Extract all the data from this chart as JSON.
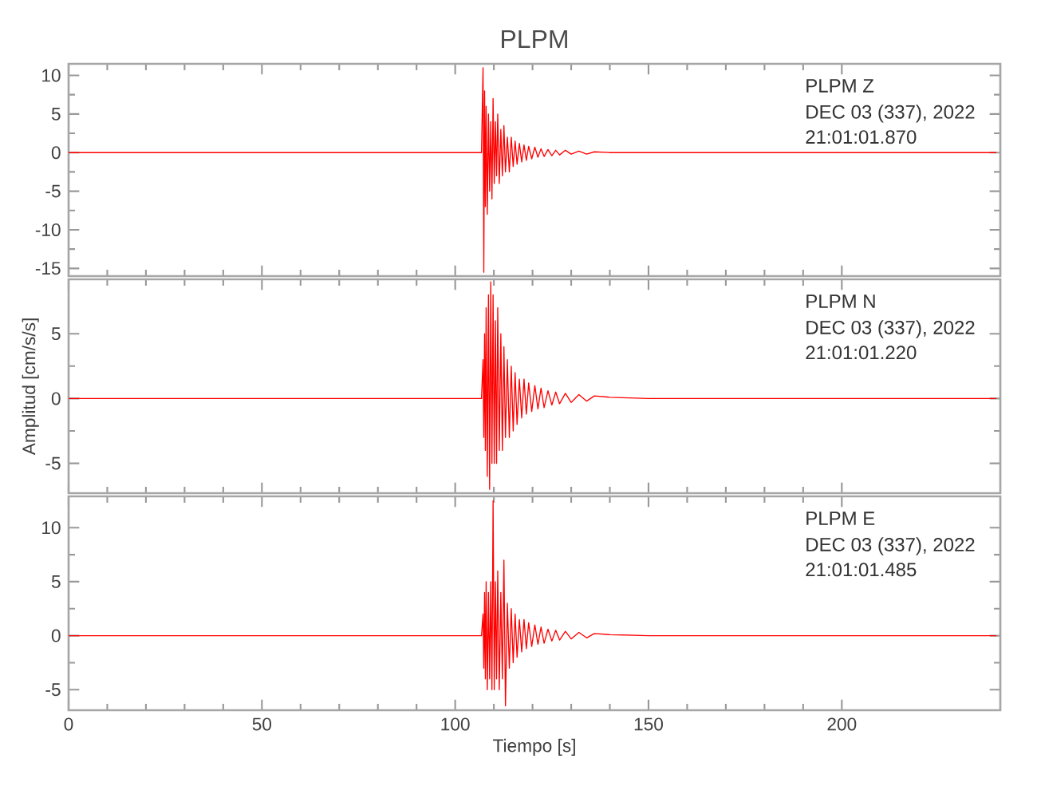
{
  "chart_data": [
    {
      "type": "line",
      "title": "PLPM",
      "annotations": [
        "PLPM   Z",
        "DEC 03 (337), 2022",
        "21:01:01.870"
      ],
      "xlim": [
        0,
        241
      ],
      "ylim": [
        -16,
        11.5
      ],
      "xticks": [
        0,
        50,
        100,
        150,
        200
      ],
      "yticks": [
        -15,
        -10,
        -5,
        0,
        5,
        10
      ],
      "tick_labels": "y",
      "series": [
        {
          "color": "#ff0000",
          "x": [
            0,
            20,
            40,
            60,
            80,
            100,
            106.8,
            107.2,
            107.4,
            107.6,
            107.8,
            108.0,
            108.3,
            108.6,
            108.9,
            109.2,
            109.5,
            109.8,
            110.1,
            110.4,
            110.7,
            111.0,
            111.4,
            111.8,
            112.2,
            112.6,
            113.0,
            113.5,
            114.0,
            114.5,
            115.0,
            115.5,
            116.0,
            116.6,
            117.2,
            117.8,
            118.4,
            119.0,
            119.8,
            120.6,
            121.4,
            122.2,
            123.0,
            124.0,
            125.0,
            126.0,
            127.0,
            128.5,
            130,
            132,
            134,
            136,
            140,
            150,
            170,
            200,
            240
          ],
          "values": [
            0,
            0,
            0,
            0,
            0,
            0,
            0,
            11,
            -15.5,
            8,
            -7,
            6,
            -8,
            5,
            -5,
            4,
            -6,
            7,
            -4,
            4,
            -3,
            5,
            -4,
            3,
            -3,
            3.5,
            -2.5,
            2,
            -2.5,
            2,
            -1.8,
            1.5,
            -1.5,
            1.2,
            -1.2,
            1,
            -1,
            0.8,
            -0.8,
            0.7,
            -0.6,
            0.5,
            -0.5,
            0.4,
            -0.4,
            0.3,
            -0.3,
            0.3,
            -0.2,
            0.2,
            -0.2,
            0.1,
            0,
            0,
            0,
            0,
            0
          ]
        }
      ]
    },
    {
      "type": "line",
      "ylabel": "Amplitud [cm/s/s]",
      "annotations": [
        "PLPM   N",
        "DEC 03 (337), 2022",
        "21:01:01.220"
      ],
      "xlim": [
        0,
        241
      ],
      "ylim": [
        -7.3,
        9.2
      ],
      "xticks": [
        0,
        50,
        100,
        150,
        200
      ],
      "yticks": [
        -5,
        0,
        5
      ],
      "tick_labels": "y",
      "series": [
        {
          "color": "#ff0000",
          "x": [
            0,
            20,
            40,
            60,
            80,
            100,
            106.8,
            107.2,
            107.4,
            107.6,
            107.8,
            108.0,
            108.3,
            108.6,
            108.9,
            109.2,
            109.5,
            109.8,
            110.1,
            110.4,
            110.7,
            111.0,
            111.4,
            111.8,
            112.2,
            112.6,
            113.0,
            113.5,
            114.0,
            114.5,
            115.0,
            115.5,
            116.0,
            116.6,
            117.2,
            117.8,
            118.4,
            119.0,
            119.8,
            120.6,
            121.4,
            122.2,
            123.0,
            124.0,
            125.0,
            126.0,
            127.0,
            128.5,
            130,
            132,
            134,
            136,
            140,
            150,
            170,
            200,
            240
          ],
          "values": [
            0,
            0,
            0,
            0,
            0,
            0,
            0,
            3,
            -3,
            5,
            -4,
            7,
            -6,
            8,
            -7,
            9,
            -5,
            8,
            -5,
            6,
            -5,
            7,
            -4,
            5,
            -4,
            4,
            -3,
            3,
            -3,
            2.5,
            -2.5,
            2,
            -2,
            1.5,
            -1.5,
            1.5,
            -1.2,
            1.2,
            -1,
            1,
            -0.8,
            0.8,
            -0.7,
            0.6,
            -0.5,
            0.5,
            -0.4,
            0.4,
            -0.3,
            0.3,
            -0.2,
            0.2,
            0.1,
            0,
            0,
            0,
            0
          ]
        }
      ]
    },
    {
      "type": "line",
      "xlabel": "Tiempo [s]",
      "annotations": [
        "PLPM   E",
        "DEC 03 (337), 2022",
        "21:01:01.485"
      ],
      "xlim": [
        0,
        241
      ],
      "ylim": [
        -6.9,
        12.9
      ],
      "xticks": [
        0,
        50,
        100,
        150,
        200
      ],
      "yticks": [
        -5,
        0,
        5,
        10
      ],
      "series": [
        {
          "color": "#ff0000",
          "x": [
            0,
            20,
            40,
            60,
            80,
            100,
            106.8,
            107.2,
            107.4,
            107.6,
            107.8,
            108.0,
            108.3,
            108.6,
            108.9,
            109.2,
            109.5,
            109.8,
            110.1,
            110.4,
            110.7,
            111.0,
            111.4,
            111.8,
            112.2,
            112.6,
            113.0,
            113.5,
            114.0,
            114.5,
            115.0,
            115.5,
            116.0,
            116.6,
            117.2,
            117.8,
            118.4,
            119.0,
            119.8,
            120.6,
            121.4,
            122.2,
            123.0,
            124.0,
            125.0,
            126.0,
            127.0,
            128.5,
            130,
            132,
            134,
            136,
            140,
            150,
            170,
            200,
            240
          ],
          "values": [
            0,
            0,
            0,
            0,
            0,
            0,
            0,
            2,
            -3,
            4,
            -4,
            5,
            -5,
            4,
            -4,
            5,
            -5,
            12.5,
            -5,
            5,
            -4,
            6,
            -5,
            4,
            -4,
            7,
            -6.5,
            3,
            -3,
            2.5,
            -2.5,
            2,
            -2,
            1.5,
            -1.5,
            1.5,
            -1.2,
            1.2,
            -1,
            1,
            -0.8,
            0.8,
            -0.7,
            0.6,
            -0.5,
            0.5,
            -0.4,
            0.4,
            -0.3,
            0.3,
            -0.2,
            0.2,
            0.1,
            0,
            0,
            0,
            0
          ]
        }
      ]
    }
  ]
}
